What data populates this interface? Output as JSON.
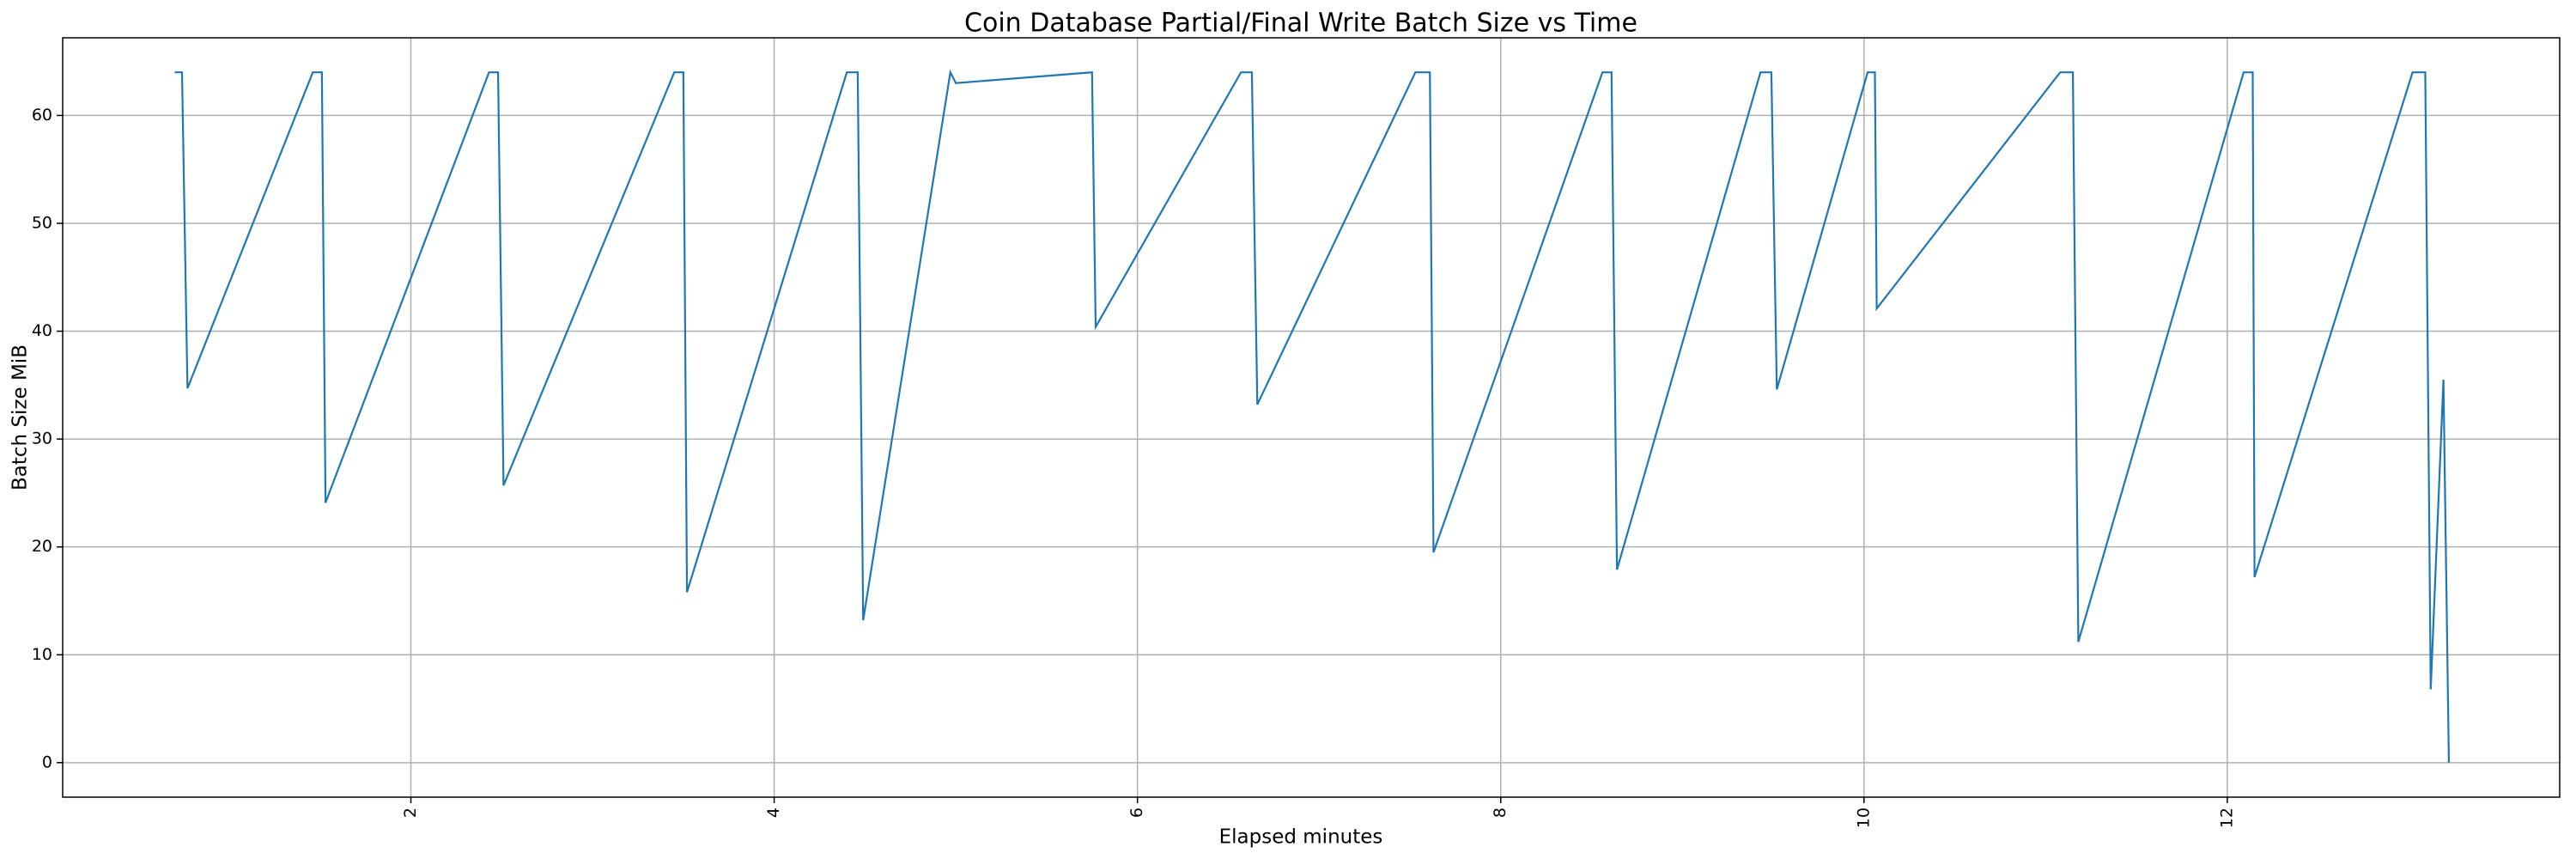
{
  "chart_data": {
    "type": "line",
    "title": "Coin Database Partial/Final Write Batch Size vs Time",
    "x_label": "Elapsed minutes",
    "y_label": "Batch Size MiB",
    "x": [
      0.7,
      0.74,
      0.77,
      1.46,
      1.51,
      1.53,
      2.43,
      2.48,
      2.51,
      3.45,
      3.5,
      3.52,
      4.4,
      4.46,
      4.49,
      4.97,
      5.0,
      5.75,
      5.77,
      6.57,
      6.63,
      6.66,
      7.53,
      7.61,
      7.63,
      8.56,
      8.61,
      8.64,
      9.43,
      9.49,
      9.52,
      10.02,
      10.06,
      10.07,
      11.08,
      11.15,
      11.18,
      12.09,
      12.14,
      12.15,
      13.02,
      13.09,
      13.12,
      13.19,
      13.22
    ],
    "series": [
      {
        "color": "#1f77b4",
        "values": [
          64,
          64,
          34.7,
          64,
          64,
          24.1,
          64,
          64,
          25.7,
          64,
          64,
          15.8,
          64,
          64,
          13.2,
          64,
          63,
          64,
          40.4,
          64,
          64,
          33.2,
          64,
          64,
          19.5,
          64,
          64,
          17.9,
          64,
          64,
          34.6,
          64,
          64,
          42.1,
          64,
          64,
          11.2,
          64,
          64,
          17.2,
          64,
          64,
          6.8,
          35.5,
          0
        ]
      }
    ],
    "xlim": [
      0.083,
      13.83
    ],
    "ylim": [
      -3.2,
      67.2
    ],
    "xticks": [
      2,
      4,
      6,
      8,
      10,
      12
    ],
    "yticks": [
      0,
      10,
      20,
      30,
      40,
      50,
      60
    ],
    "grid": true
  }
}
